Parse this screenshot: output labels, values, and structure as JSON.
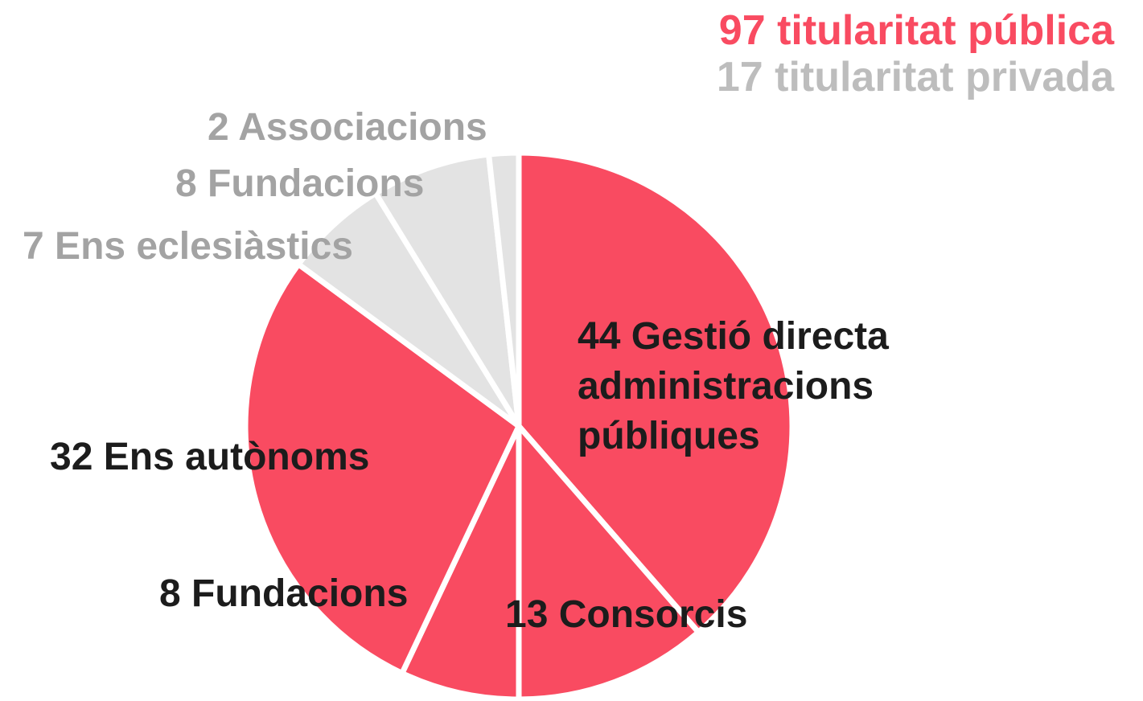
{
  "chart_data": {
    "type": "pie",
    "categories": [
      "Gestió directa administracions públiques",
      "Consorcis",
      "Fundacions",
      "Ens autònoms",
      "Ens eclesiàstics",
      "Fundacions",
      "Associacions"
    ],
    "values": [
      44,
      13,
      8,
      32,
      7,
      8,
      2
    ],
    "colors": [
      "#f94b61",
      "#f94b61",
      "#f94b61",
      "#f94b61",
      "#e3e3e3",
      "#e3e3e3",
      "#e3e3e3"
    ],
    "annotations": [
      {
        "text": "97 titularitat pública",
        "color": "#f94b61"
      },
      {
        "text": "17 titularitat privada",
        "color": "#bdbdbd"
      }
    ]
  }
}
